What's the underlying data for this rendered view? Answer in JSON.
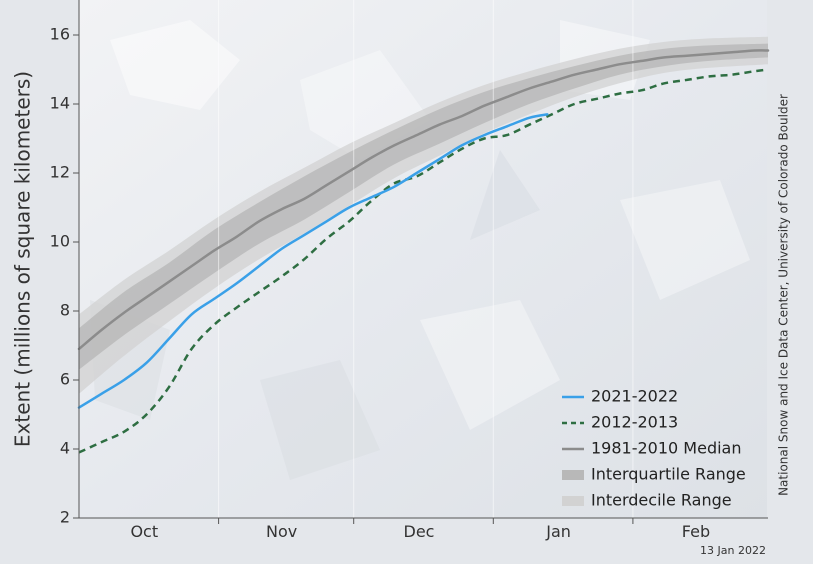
{
  "chart_data": {
    "type": "line",
    "title": "",
    "ylabel": "Extent (millions of square kilometers)",
    "xlabel": "",
    "ylim": [
      2,
      17
    ],
    "yticks": [
      2,
      4,
      6,
      8,
      10,
      12,
      14,
      16
    ],
    "xlim": [
      0,
      153
    ],
    "month_labels": [
      "Oct",
      "Nov",
      "Dec",
      "Jan",
      "Feb"
    ],
    "month_label_days": [
      14.5,
      45,
      75.5,
      106.5,
      137
    ],
    "month_separator_days": [
      0,
      31,
      61,
      92,
      123
    ],
    "date_label": "13 Jan 2022",
    "credit": "National Snow and Ice Data Center, University of Colorado Boulder",
    "legend_position": "bottom-right",
    "series": [
      {
        "name": "2021-2022",
        "style": "solid",
        "color": "#3aa0e8",
        "x": [
          0,
          5,
          10,
          15,
          20,
          25,
          30,
          35,
          40,
          45,
          50,
          55,
          60,
          65,
          70,
          75,
          80,
          85,
          90,
          95,
          100,
          104
        ],
        "y": [
          5.2,
          5.6,
          6.0,
          6.5,
          7.2,
          7.9,
          8.35,
          8.8,
          9.3,
          9.8,
          10.2,
          10.6,
          11.0,
          11.3,
          11.6,
          12.0,
          12.4,
          12.8,
          13.1,
          13.35,
          13.6,
          13.7
        ]
      },
      {
        "name": "2012-2013",
        "style": "dashed",
        "color": "#2e6e42",
        "x": [
          0,
          5,
          10,
          15,
          20,
          25,
          30,
          35,
          40,
          45,
          50,
          55,
          60,
          65,
          70,
          75,
          80,
          85,
          90,
          95,
          100,
          105,
          110,
          115,
          120,
          125,
          130,
          135,
          140,
          145,
          150,
          153
        ],
        "y": [
          3.9,
          4.2,
          4.5,
          5.0,
          5.8,
          6.9,
          7.6,
          8.1,
          8.55,
          9.0,
          9.5,
          10.1,
          10.6,
          11.2,
          11.7,
          11.9,
          12.3,
          12.7,
          13.0,
          13.1,
          13.4,
          13.7,
          14.0,
          14.15,
          14.3,
          14.4,
          14.6,
          14.7,
          14.8,
          14.85,
          14.95,
          15.0
        ]
      },
      {
        "name": "1981-2010 Median",
        "style": "solid",
        "color": "#8c8c8c",
        "x": [
          0,
          5,
          10,
          15,
          20,
          25,
          30,
          35,
          40,
          45,
          50,
          55,
          60,
          65,
          70,
          75,
          80,
          85,
          90,
          95,
          100,
          105,
          110,
          115,
          120,
          125,
          130,
          135,
          140,
          145,
          150,
          153
        ],
        "y": [
          6.9,
          7.45,
          7.95,
          8.4,
          8.85,
          9.3,
          9.75,
          10.15,
          10.6,
          10.95,
          11.25,
          11.65,
          12.05,
          12.45,
          12.8,
          13.1,
          13.4,
          13.65,
          13.95,
          14.2,
          14.45,
          14.65,
          14.85,
          15.0,
          15.15,
          15.25,
          15.35,
          15.4,
          15.45,
          15.5,
          15.55,
          15.55
        ]
      },
      {
        "name": "Interquartile Range",
        "style": "band",
        "color": "#b8b8b8",
        "x": [
          0,
          10,
          20,
          30,
          40,
          50,
          60,
          70,
          80,
          90,
          100,
          110,
          120,
          130,
          140,
          153
        ],
        "low": [
          6.3,
          7.3,
          8.2,
          9.1,
          9.95,
          10.65,
          11.45,
          12.25,
          12.85,
          13.45,
          14.0,
          14.45,
          14.85,
          15.1,
          15.25,
          15.35
        ],
        "high": [
          7.5,
          8.55,
          9.4,
          10.35,
          11.15,
          11.9,
          12.6,
          13.25,
          13.85,
          14.35,
          14.75,
          15.1,
          15.4,
          15.6,
          15.7,
          15.75
        ]
      },
      {
        "name": "Interdecile Range",
        "style": "band",
        "color": "#d2d2d2",
        "x": [
          0,
          10,
          20,
          30,
          40,
          50,
          60,
          70,
          80,
          90,
          100,
          110,
          120,
          130,
          140,
          153
        ],
        "low": [
          5.6,
          6.7,
          7.7,
          8.65,
          9.5,
          10.25,
          11.05,
          11.85,
          12.5,
          13.15,
          13.7,
          14.2,
          14.6,
          14.9,
          15.05,
          15.15
        ],
        "high": [
          7.9,
          8.9,
          9.75,
          10.65,
          11.45,
          12.15,
          12.85,
          13.45,
          14.05,
          14.55,
          14.95,
          15.3,
          15.6,
          15.8,
          15.9,
          15.95
        ]
      }
    ]
  },
  "legend": {
    "items": [
      {
        "label": "2021-2022",
        "kind": "line",
        "color": "#3aa0e8"
      },
      {
        "label": "2012-2013",
        "kind": "dashed",
        "color": "#2e6e42"
      },
      {
        "label": "1981-2010 Median",
        "kind": "line",
        "color": "#8c8c8c"
      },
      {
        "label": "Interquartile Range",
        "kind": "band",
        "color": "#b8b8b8"
      },
      {
        "label": "Interdecile Range",
        "kind": "band",
        "color": "#d2d2d2"
      }
    ]
  }
}
